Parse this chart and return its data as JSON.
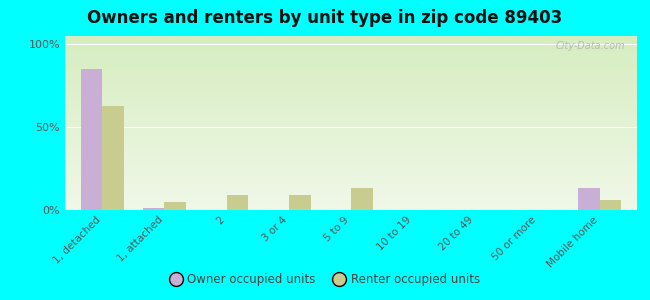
{
  "title": "Owners and renters by unit type in zip code 89403",
  "categories": [
    "1, detached",
    "1, attached",
    "2",
    "3 or 4",
    "5 to 9",
    "10 to 19",
    "20 to 49",
    "50 or more",
    "Mobile home"
  ],
  "owner_values": [
    85,
    1,
    0,
    0,
    0,
    0,
    0,
    0,
    13
  ],
  "renter_values": [
    63,
    5,
    9,
    9,
    13,
    0,
    0,
    0,
    6
  ],
  "owner_color": "#c9aed6",
  "renter_color": "#c8cc8e",
  "background_color": "#00ffff",
  "grad_top_color": "#d6edc0",
  "grad_bottom_color": "#f0f8e8",
  "ylabel_ticks": [
    "0%",
    "50%",
    "100%"
  ],
  "ytick_vals": [
    0,
    50,
    100
  ],
  "bar_width": 0.35,
  "title_fontsize": 12,
  "legend_labels": [
    "Owner occupied units",
    "Renter occupied units"
  ],
  "watermark": "City-Data.com"
}
